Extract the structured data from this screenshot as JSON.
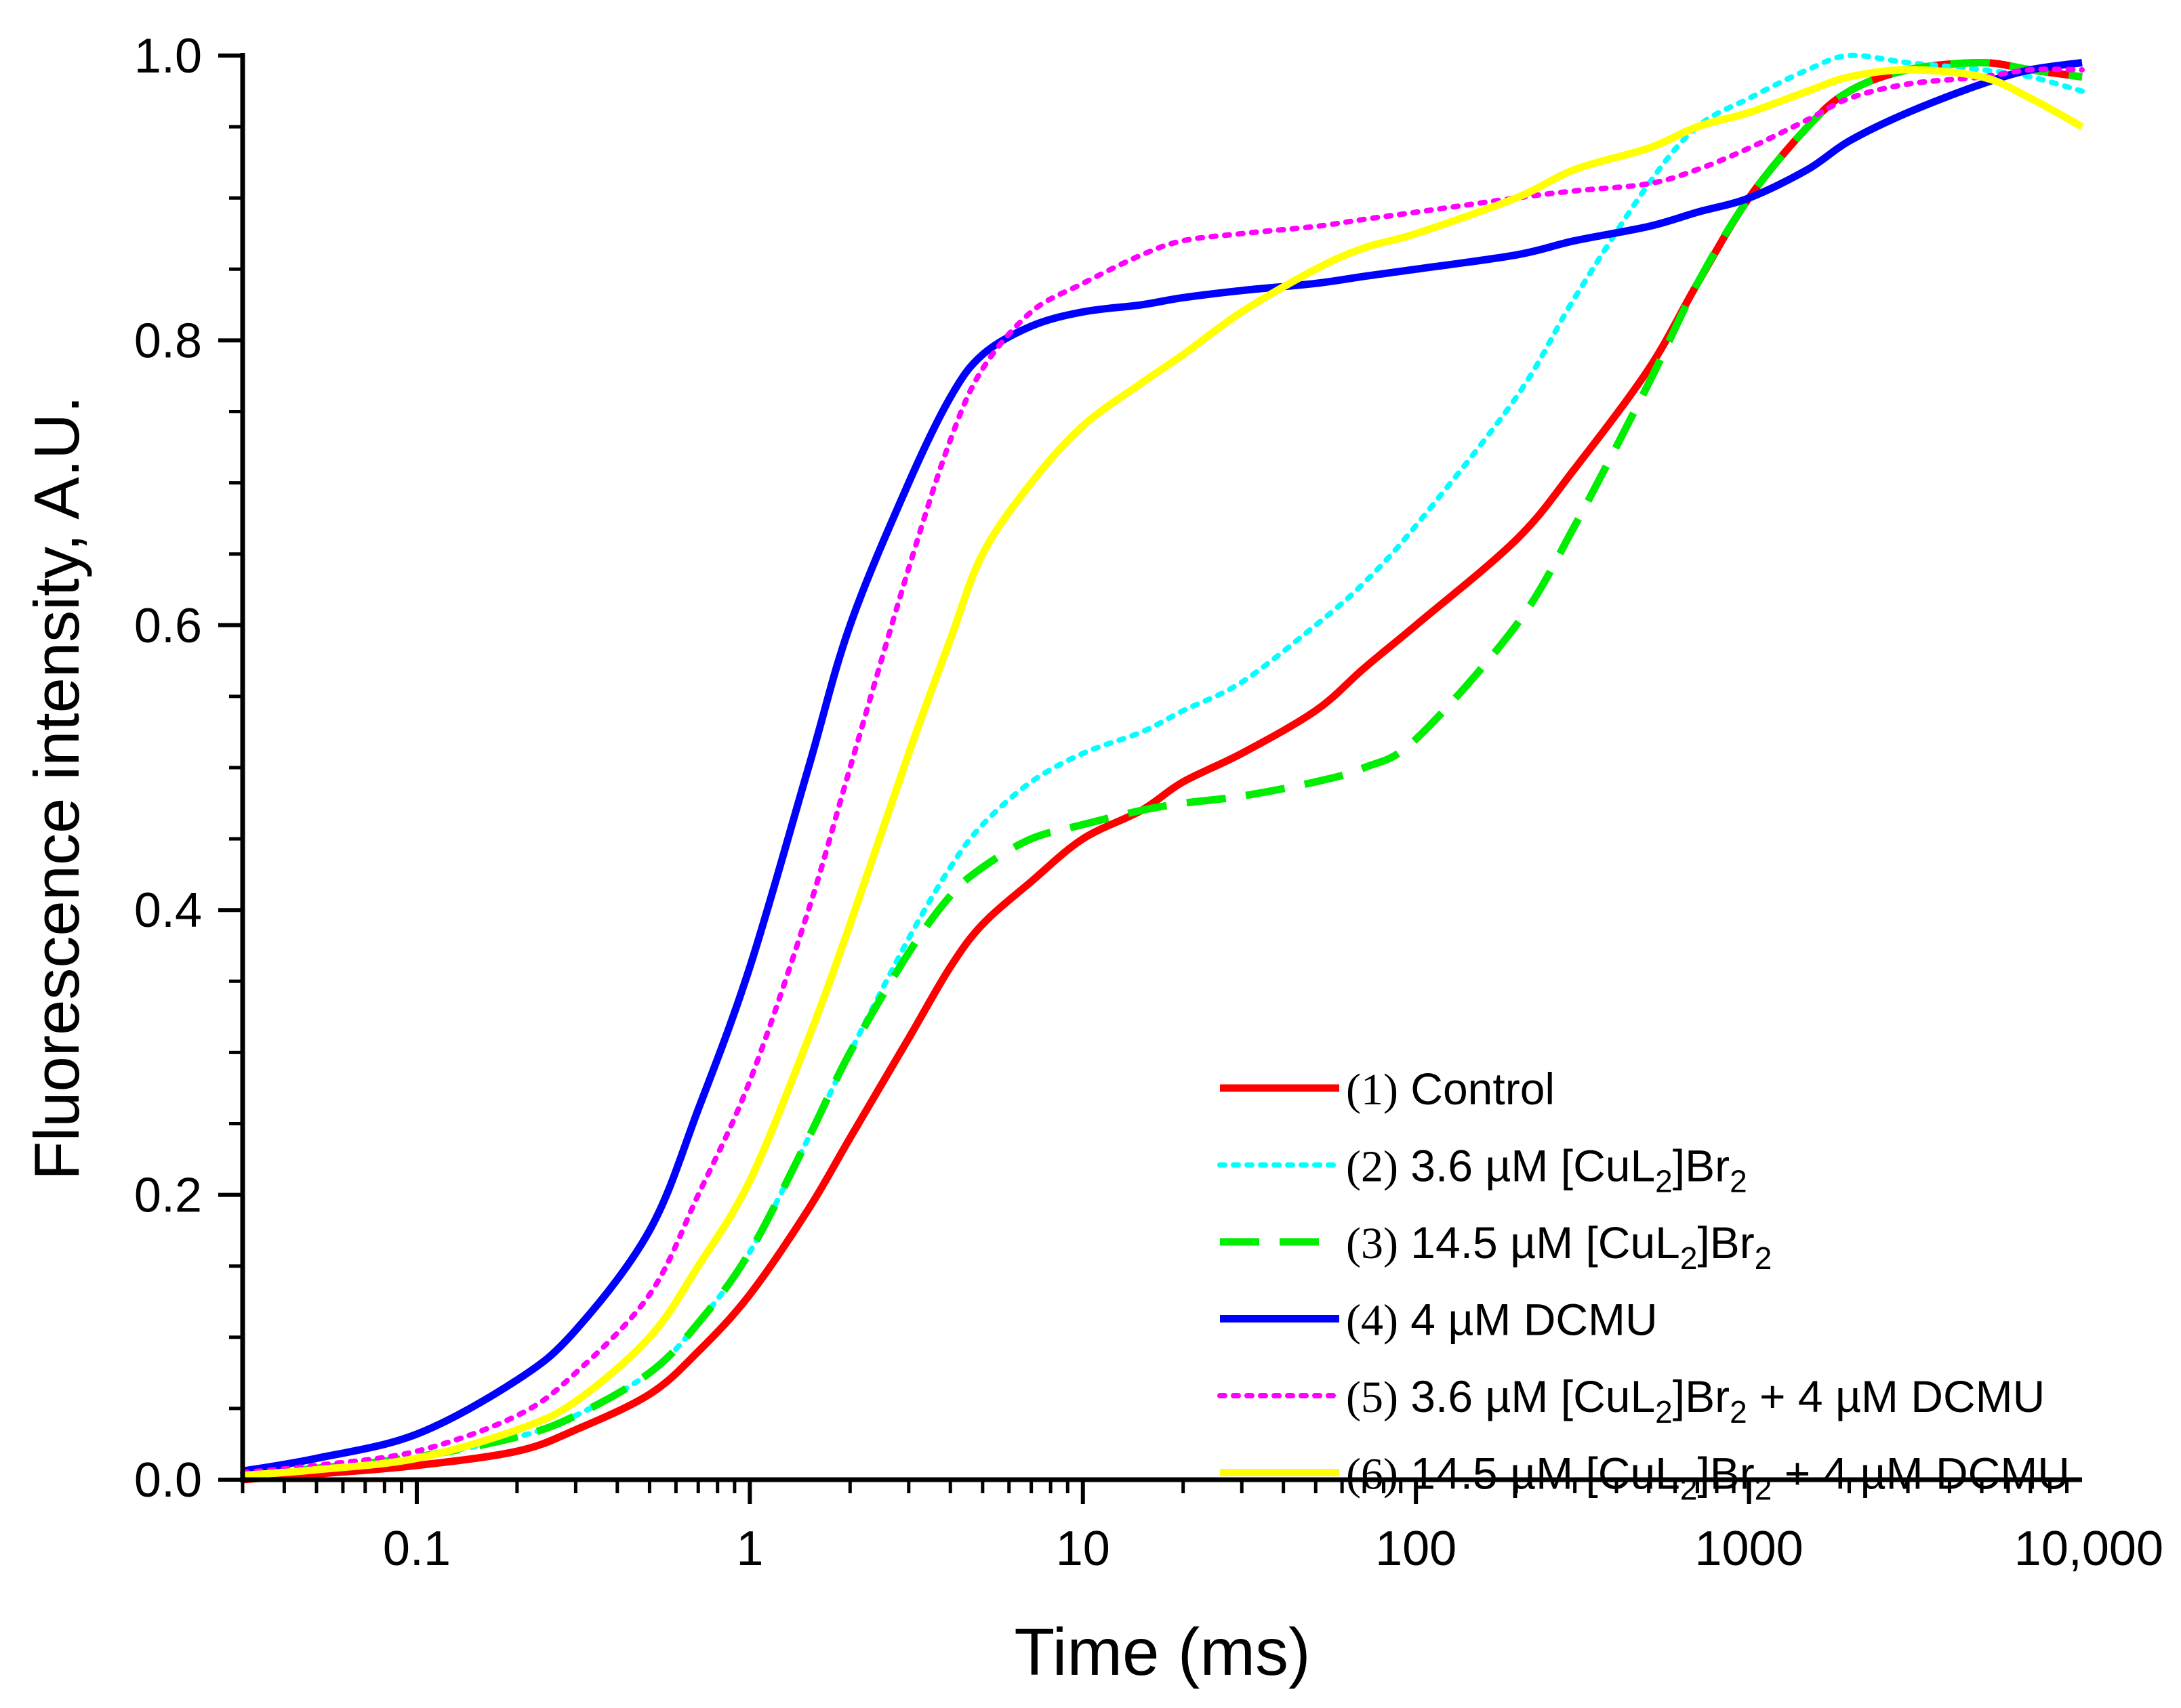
{
  "chart_data": {
    "type": "line",
    "title": "",
    "xlabel": "Time (ms)",
    "ylabel": "Fluorescence intensity, A.U.",
    "xscale": "log",
    "xlim": [
      0.03,
      10000
    ],
    "ylim": [
      0,
      1
    ],
    "x_ticks": [
      {
        "value": 0.1,
        "label": "0.1"
      },
      {
        "value": 1,
        "label": "1"
      },
      {
        "value": 10,
        "label": "10"
      },
      {
        "value": 100,
        "label": "100"
      },
      {
        "value": 1000,
        "label": "1000"
      },
      {
        "value": 10000,
        "label": "10,000"
      }
    ],
    "y_ticks": [
      {
        "value": 0.0,
        "label": "0.0"
      },
      {
        "value": 0.2,
        "label": "0.2"
      },
      {
        "value": 0.4,
        "label": "0.4"
      },
      {
        "value": 0.6,
        "label": "0.6"
      },
      {
        "value": 0.8,
        "label": "0.8"
      },
      {
        "value": 1.0,
        "label": "1.0"
      }
    ],
    "grid": false,
    "legend_position": "bottom-right",
    "series": [
      {
        "name": "(1) Control",
        "legend": {
          "num": "(1)",
          "parts": [
            {
              "t": " Control"
            }
          ]
        },
        "color": "#ff0000",
        "style": "solid",
        "x": [
          0.03,
          0.05,
          0.1,
          0.2,
          0.3,
          0.5,
          0.7,
          1,
          1.5,
          2,
          3,
          4,
          5,
          7,
          10,
          15,
          20,
          30,
          50,
          70,
          100,
          200,
          300,
          500,
          700,
          1000,
          1500,
          2000,
          3000,
          5000,
          7000,
          10000
        ],
        "values": [
          0.0,
          0.004,
          0.01,
          0.02,
          0.035,
          0.06,
          0.09,
          0.13,
          0.19,
          0.24,
          0.31,
          0.36,
          0.39,
          0.42,
          0.45,
          0.47,
          0.49,
          0.51,
          0.54,
          0.57,
          0.6,
          0.66,
          0.71,
          0.78,
          0.84,
          0.9,
          0.95,
          0.975,
          0.99,
          0.995,
          0.99,
          0.985
        ]
      },
      {
        "name": "(2) 3.6 µM [CuL2]Br2",
        "legend": {
          "num": "(2)",
          "parts": [
            {
              "t": " 3.6 µM [CuL"
            },
            {
              "t": "2",
              "sub": true
            },
            {
              "t": "]Br"
            },
            {
              "t": "2",
              "sub": true
            }
          ]
        },
        "color": "#00ffff",
        "style": "dotted",
        "x": [
          0.03,
          0.05,
          0.1,
          0.2,
          0.3,
          0.5,
          0.7,
          1,
          1.5,
          2,
          3,
          4,
          5,
          7,
          10,
          15,
          20,
          30,
          50,
          70,
          100,
          200,
          300,
          500,
          700,
          1000,
          1500,
          2000,
          3000,
          5000,
          7000,
          10000
        ],
        "values": [
          0.003,
          0.008,
          0.016,
          0.03,
          0.045,
          0.075,
          0.11,
          0.16,
          0.24,
          0.3,
          0.38,
          0.43,
          0.46,
          0.49,
          0.51,
          0.525,
          0.54,
          0.56,
          0.6,
          0.63,
          0.67,
          0.76,
          0.83,
          0.91,
          0.95,
          0.97,
          0.99,
          1.0,
          0.995,
          0.99,
          0.985,
          0.975
        ]
      },
      {
        "name": "(3) 14.5 µM [CuL2]Br2",
        "legend": {
          "num": "(3)",
          "parts": [
            {
              "t": " 14.5 µM [CuL"
            },
            {
              "t": "2",
              "sub": true
            },
            {
              "t": "]Br"
            },
            {
              "t": "2",
              "sub": true
            }
          ]
        },
        "color": "#00ee00",
        "style": "dashed",
        "x": [
          0.03,
          0.05,
          0.1,
          0.2,
          0.3,
          0.5,
          0.7,
          1,
          1.5,
          2,
          3,
          4,
          5,
          7,
          10,
          15,
          20,
          30,
          50,
          70,
          100,
          200,
          300,
          500,
          700,
          1000,
          1500,
          2000,
          3000,
          5000,
          7000,
          10000
        ],
        "values": [
          0.003,
          0.008,
          0.016,
          0.03,
          0.045,
          0.075,
          0.11,
          0.16,
          0.24,
          0.3,
          0.37,
          0.41,
          0.43,
          0.45,
          0.46,
          0.47,
          0.475,
          0.48,
          0.49,
          0.5,
          0.52,
          0.6,
          0.67,
          0.77,
          0.84,
          0.9,
          0.95,
          0.975,
          0.99,
          0.995,
          0.99,
          0.985
        ]
      },
      {
        "name": "(4) 4 µM DCMU",
        "legend": {
          "num": "(4)",
          "parts": [
            {
              "t": " 4 µM DCMU"
            }
          ]
        },
        "color": "#0000ff",
        "style": "solid",
        "x": [
          0.03,
          0.05,
          0.1,
          0.2,
          0.3,
          0.5,
          0.7,
          1,
          1.5,
          2,
          3,
          4,
          5,
          7,
          10,
          15,
          20,
          30,
          50,
          70,
          100,
          200,
          300,
          500,
          700,
          1000,
          1500,
          2000,
          3000,
          5000,
          7000,
          10000
        ],
        "values": [
          0.006,
          0.015,
          0.032,
          0.07,
          0.105,
          0.175,
          0.26,
          0.36,
          0.5,
          0.6,
          0.7,
          0.76,
          0.79,
          0.81,
          0.82,
          0.825,
          0.83,
          0.835,
          0.84,
          0.845,
          0.85,
          0.86,
          0.87,
          0.88,
          0.89,
          0.9,
          0.92,
          0.94,
          0.96,
          0.98,
          0.99,
          0.995
        ]
      },
      {
        "name": "(5) 3.6 µM [CuL2]Br2 + 4 µM DCMU",
        "legend": {
          "num": "(5)",
          "parts": [
            {
              "t": " 3.6 µM [CuL"
            },
            {
              "t": "2",
              "sub": true
            },
            {
              "t": "]Br"
            },
            {
              "t": "2",
              "sub": true
            },
            {
              "t": " + 4 µM DCMU"
            }
          ]
        },
        "color": "#ff00ff",
        "style": "dotted",
        "x": [
          0.03,
          0.05,
          0.1,
          0.2,
          0.3,
          0.5,
          0.7,
          1,
          1.5,
          2,
          3,
          4,
          5,
          7,
          10,
          15,
          20,
          30,
          50,
          70,
          100,
          200,
          300,
          500,
          700,
          1000,
          1500,
          2000,
          3000,
          5000,
          7000,
          10000
        ],
        "values": [
          0.005,
          0.01,
          0.02,
          0.045,
          0.075,
          0.13,
          0.2,
          0.28,
          0.4,
          0.5,
          0.64,
          0.73,
          0.78,
          0.82,
          0.84,
          0.86,
          0.87,
          0.875,
          0.88,
          0.885,
          0.89,
          0.9,
          0.905,
          0.91,
          0.92,
          0.935,
          0.955,
          0.97,
          0.98,
          0.985,
          0.99,
          0.99
        ]
      },
      {
        "name": "(6) 14.5 µM [CuL2]Br2 + 4 µM DCMU",
        "legend": {
          "num": "(6)",
          "parts": [
            {
              "t": " 14.5 µM [CuL"
            },
            {
              "t": "2",
              "sub": true
            },
            {
              "t": "]Br"
            },
            {
              "t": "2",
              "sub": true
            },
            {
              "t": " + 4 µM DCMU"
            }
          ]
        },
        "color": "#ffff00",
        "style": "solid",
        "x": [
          0.03,
          0.05,
          0.1,
          0.2,
          0.3,
          0.5,
          0.7,
          1,
          1.5,
          2,
          3,
          4,
          5,
          7,
          10,
          15,
          20,
          30,
          50,
          70,
          100,
          200,
          300,
          500,
          700,
          1000,
          1500,
          2000,
          3000,
          5000,
          7000,
          10000
        ],
        "values": [
          0.003,
          0.007,
          0.015,
          0.035,
          0.055,
          0.1,
          0.15,
          0.21,
          0.31,
          0.39,
          0.51,
          0.59,
          0.65,
          0.7,
          0.74,
          0.77,
          0.79,
          0.82,
          0.85,
          0.865,
          0.875,
          0.9,
          0.92,
          0.935,
          0.95,
          0.96,
          0.975,
          0.985,
          0.99,
          0.985,
          0.97,
          0.95
        ]
      }
    ]
  }
}
